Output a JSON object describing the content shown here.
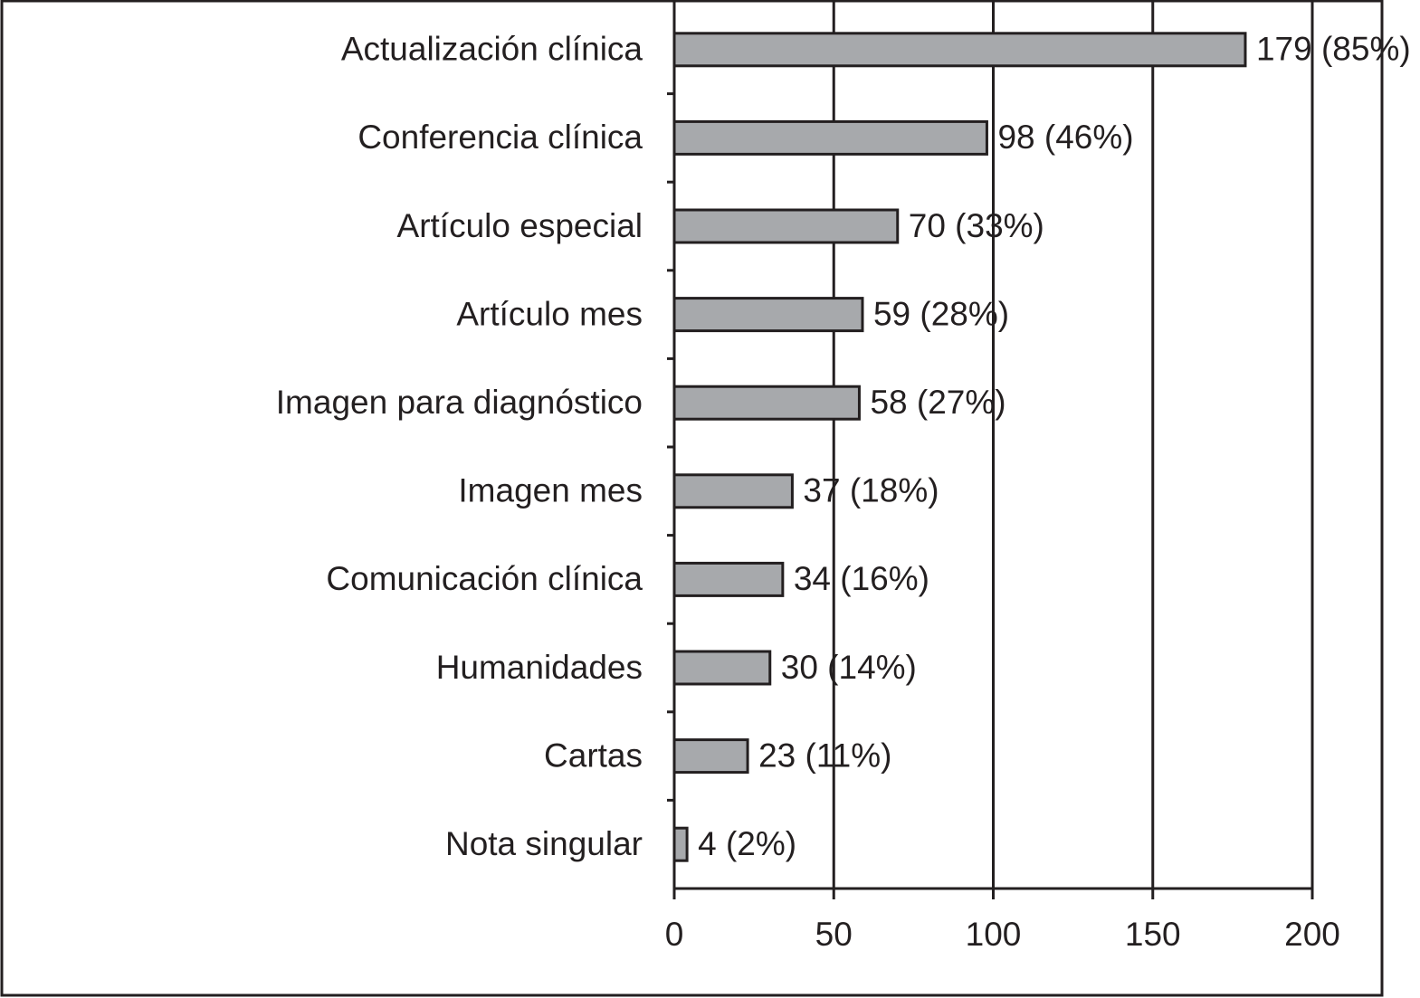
{
  "chart_data": {
    "type": "bar",
    "orientation": "horizontal",
    "categories": [
      "Actualización clínica",
      "Conferencia clínica",
      "Artículo especial",
      "Artículo mes",
      "Imagen para diagnóstico",
      "Imagen mes",
      "Comunicación clínica",
      "Humanidades",
      "Cartas",
      "Nota singular"
    ],
    "values": [
      179,
      98,
      70,
      59,
      58,
      37,
      34,
      30,
      23,
      4
    ],
    "value_labels": [
      "179 (85%)",
      "98 (46%)",
      "70 (33%)",
      "59 (28%)",
      "58 (27%)",
      "37 (18%)",
      "34 (16%)",
      "30 (14%)",
      "23 (11%)",
      "4 (2%)"
    ],
    "color": "#a7a9ac",
    "xlim": [
      0,
      200
    ],
    "xticks": [
      0,
      50,
      100,
      150,
      200
    ],
    "grid": true
  }
}
